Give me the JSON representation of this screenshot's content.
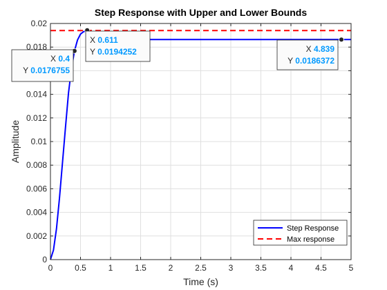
{
  "chart_data": {
    "type": "line",
    "title": "Step Response with Upper and Lower Bounds",
    "xlabel": "Time (s)",
    "ylabel": "Amplitude",
    "xlim": [
      0,
      5
    ],
    "ylim": [
      0,
      0.02
    ],
    "x_ticks": [
      "0",
      "0.5",
      "1",
      "1.5",
      "2",
      "2.5",
      "3",
      "3.5",
      "4",
      "4.5",
      "5"
    ],
    "y_ticks": [
      "0",
      "0.002",
      "0.004",
      "0.006",
      "0.008",
      "0.01",
      "0.012",
      "0.014",
      "0.016",
      "0.018",
      "0.02"
    ],
    "grid": true,
    "legend_position": "bottom-right",
    "series": [
      {
        "name": "Step Response",
        "color": "#0000ff",
        "style": "solid",
        "x": [
          0,
          0.05,
          0.1,
          0.15,
          0.2,
          0.25,
          0.3,
          0.35,
          0.4,
          0.45,
          0.5,
          0.55,
          0.611,
          0.65,
          0.7,
          5
        ],
        "y": [
          0,
          0.0008,
          0.0026,
          0.0052,
          0.0082,
          0.0112,
          0.0141,
          0.0162,
          0.0176755,
          0.0186,
          0.0191,
          0.0193,
          0.0194252,
          0.0187,
          0.0186372,
          0.0186372
        ]
      },
      {
        "name": "Max response",
        "color": "#ff0000",
        "style": "dashed",
        "x": [
          0,
          5
        ],
        "y": [
          0.0194,
          0.0194
        ]
      }
    ],
    "datatips": [
      {
        "x": 0.4,
        "y": 0.0176755,
        "x_label": "0.4",
        "y_label": "0.0176755"
      },
      {
        "x": 0.611,
        "y": 0.0194252,
        "x_label": "0.611",
        "y_label": "0.0194252"
      },
      {
        "x": 4.839,
        "y": 0.0186372,
        "x_label": "4.839",
        "y_label": "0.0186372"
      }
    ]
  }
}
